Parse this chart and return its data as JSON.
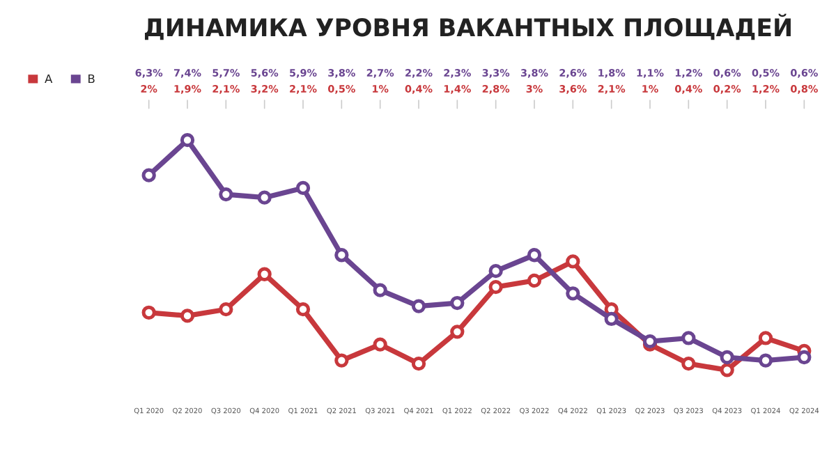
{
  "chart_data": {
    "type": "line",
    "title": "ДИНАМИКА УРОВНЯ ВАКАНТНЫХ ПЛОЩАДЕЙ",
    "categories": [
      "Q1 2020",
      "Q2 2020",
      "Q3 2020",
      "Q4 2020",
      "Q1 2021",
      "Q2 2021",
      "Q3 2021",
      "Q4 2021",
      "Q1 2022",
      "Q2 2022",
      "Q3 2022",
      "Q4 2022",
      "Q1 2023",
      "Q2 2023",
      "Q3 2023",
      "Q4 2023",
      "Q1 2024",
      "Q2 2024"
    ],
    "series": [
      {
        "name": "A",
        "color": "#c8383c",
        "values": [
          2,
          1.9,
          2.1,
          3.2,
          2.1,
          0.5,
          1,
          0.4,
          1.4,
          2.8,
          3,
          3.6,
          2.1,
          1,
          0.4,
          0.2,
          1.2,
          0.8
        ],
        "value_labels": [
          "2%",
          "1,9%",
          "2,1%",
          "3,2%",
          "2,1%",
          "0,5%",
          "1%",
          "0,4%",
          "1,4%",
          "2,8%",
          "3%",
          "3,6%",
          "2,1%",
          "1%",
          "0,4%",
          "0,2%",
          "1,2%",
          "0,8%"
        ]
      },
      {
        "name": "B",
        "color": "#6a4591",
        "values": [
          6.3,
          7.4,
          5.7,
          5.6,
          5.9,
          3.8,
          2.7,
          2.2,
          2.3,
          3.3,
          3.8,
          2.6,
          1.8,
          1.1,
          1.2,
          0.6,
          0.5,
          0.6
        ],
        "value_labels": [
          "6,3%",
          "7,4%",
          "5,7%",
          "5,6%",
          "5,9%",
          "3,8%",
          "2,7%",
          "2,2%",
          "2,3%",
          "3,3%",
          "3,8%",
          "2,6%",
          "1,8%",
          "1,1%",
          "1,2%",
          "0,6%",
          "0,5%",
          "0,6%"
        ]
      }
    ],
    "marker": "circle",
    "line_style": "solid",
    "legend": "top left",
    "grid": false
  }
}
